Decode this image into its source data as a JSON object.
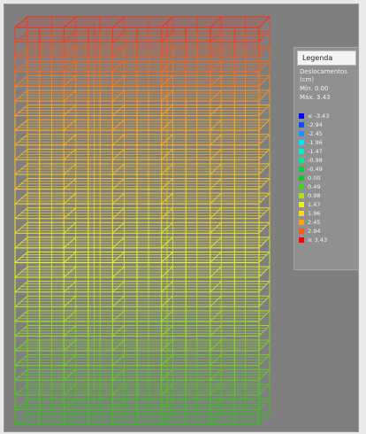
{
  "legend": {
    "title": "Legenda",
    "heading_line1": "Deslocamentos",
    "heading_line2": "(cm)",
    "min_text": "Mín. 0.00",
    "max_text": "Máx. 3.43",
    "entries": [
      {
        "label": "≤ -3.43",
        "color": "#0000ff"
      },
      {
        "label": "-2.94",
        "color": "#0a50ff"
      },
      {
        "label": "-2.45",
        "color": "#1e90ff"
      },
      {
        "label": "-1.96",
        "color": "#00e0ff"
      },
      {
        "label": "-1.47",
        "color": "#00f0c8"
      },
      {
        "label": "-0.98",
        "color": "#00e890"
      },
      {
        "label": "-0.49",
        "color": "#00d040"
      },
      {
        "label": "0.00",
        "color": "#12c81e"
      },
      {
        "label": "0.49",
        "color": "#48d02a"
      },
      {
        "label": "0.98",
        "color": "#a8e028"
      },
      {
        "label": "1.47",
        "color": "#e8f020"
      },
      {
        "label": "1.96",
        "color": "#ffd818"
      },
      {
        "label": "2.45",
        "color": "#ffa010"
      },
      {
        "label": "2.94",
        "color": "#ff5a10"
      },
      {
        "label": "≥ 3.43",
        "color": "#ff0000"
      }
    ]
  },
  "model": {
    "floors": 27,
    "colors": {
      "base": "#2ec21a",
      "mid": "#e6f024",
      "upper": "#ffa21a",
      "top": "#ff2a10"
    }
  }
}
